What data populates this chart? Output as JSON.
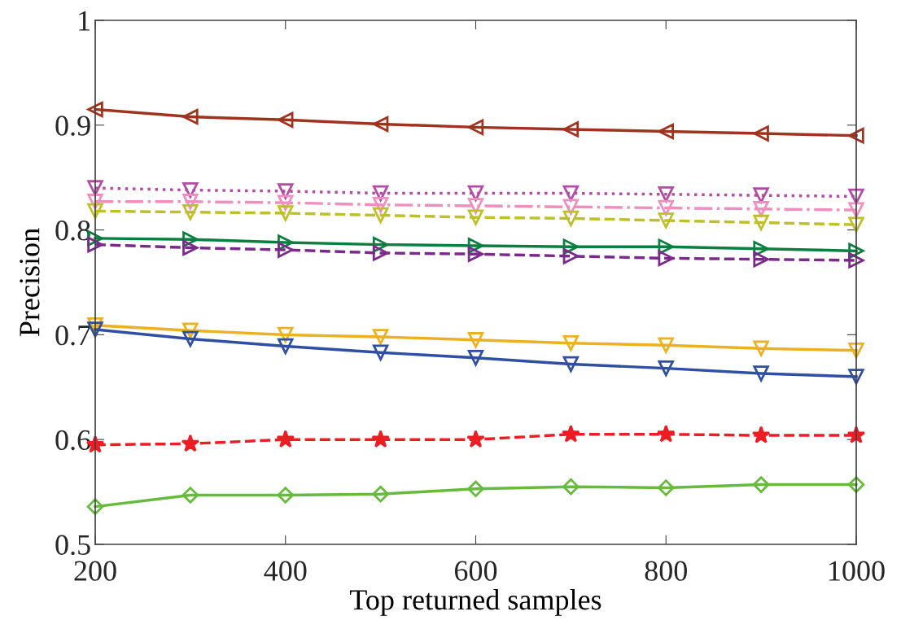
{
  "chart_data": {
    "type": "line",
    "xlabel": "Top returned samples",
    "ylabel": "Precision",
    "x": [
      200,
      300,
      400,
      500,
      600,
      700,
      800,
      900,
      1000
    ],
    "xlim": [
      200,
      1000
    ],
    "xticks": [
      200,
      400,
      600,
      800,
      1000
    ],
    "ylim": [
      0.5,
      1
    ],
    "yticks": [
      0.5,
      0.6,
      0.7,
      0.8,
      0.9,
      1
    ],
    "series": [
      {
        "color": "#a0321e",
        "marker": "triangle-left",
        "line_style": "solid",
        "values": [
          0.915,
          0.908,
          0.905,
          0.901,
          0.898,
          0.896,
          0.894,
          0.892,
          0.89
        ]
      },
      {
        "color": "#b44ba4",
        "marker": "triangle-down",
        "line_style": "dotted",
        "values": [
          0.84,
          0.838,
          0.837,
          0.835,
          0.835,
          0.835,
          0.834,
          0.833,
          0.832
        ]
      },
      {
        "color": "#f08fbf",
        "marker": "triangle-down",
        "line_style": "dashdot",
        "values": [
          0.827,
          0.827,
          0.826,
          0.824,
          0.823,
          0.822,
          0.821,
          0.82,
          0.819
        ]
      },
      {
        "color": "#bfbf2a",
        "marker": "triangle-down",
        "line_style": "dashed",
        "values": [
          0.818,
          0.817,
          0.816,
          0.814,
          0.812,
          0.811,
          0.809,
          0.807,
          0.805
        ]
      },
      {
        "color": "#0a8040",
        "marker": "triangle-right",
        "line_style": "solid",
        "values": [
          0.792,
          0.791,
          0.788,
          0.786,
          0.785,
          0.784,
          0.784,
          0.782,
          0.78
        ]
      },
      {
        "color": "#7b2a8c",
        "marker": "triangle-right",
        "line_style": "dashed",
        "values": [
          0.786,
          0.783,
          0.781,
          0.778,
          0.777,
          0.775,
          0.773,
          0.772,
          0.771
        ]
      },
      {
        "color": "#edb120",
        "marker": "triangle-down",
        "line_style": "solid",
        "values": [
          0.709,
          0.704,
          0.7,
          0.698,
          0.695,
          0.692,
          0.69,
          0.687,
          0.685
        ]
      },
      {
        "color": "#2e4fa3",
        "marker": "triangle-down",
        "line_style": "solid",
        "values": [
          0.705,
          0.696,
          0.689,
          0.683,
          0.678,
          0.672,
          0.668,
          0.663,
          0.66
        ]
      },
      {
        "color": "#ee1d23",
        "marker": "star",
        "line_style": "dashed",
        "values": [
          0.595,
          0.596,
          0.6,
          0.6,
          0.6,
          0.605,
          0.605,
          0.604,
          0.604
        ]
      },
      {
        "color": "#66bb3c",
        "marker": "diamond",
        "line_style": "solid",
        "values": [
          0.536,
          0.547,
          0.547,
          0.548,
          0.553,
          0.555,
          0.554,
          0.557,
          0.557
        ]
      }
    ]
  }
}
